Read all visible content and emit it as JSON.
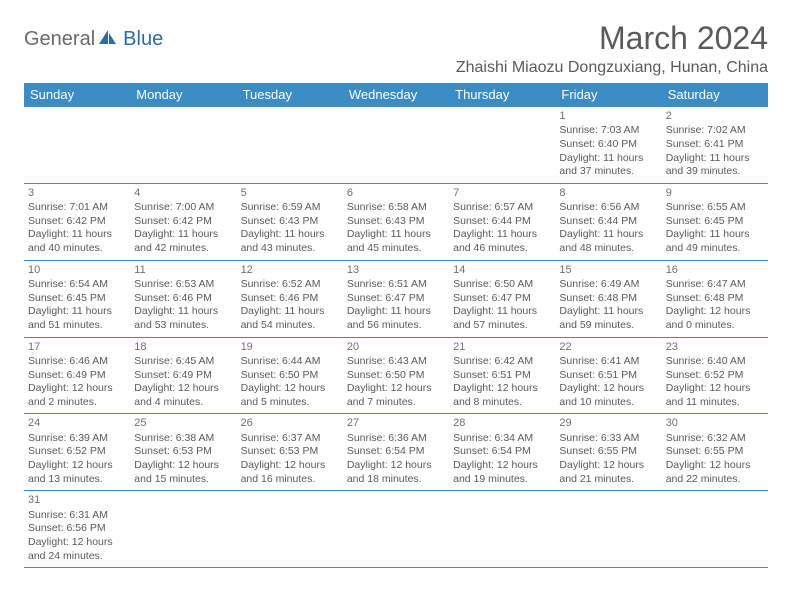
{
  "logo": {
    "part1": "General",
    "part2": "Blue"
  },
  "title": "March 2024",
  "location": "Zhaishi Miaozu Dongzuxiang, Hunan, China",
  "colors": {
    "header_bg": "#3b8bc4",
    "header_text": "#ffffff",
    "border": "#3b8bc4",
    "text": "#5a5a5a",
    "logo_blue": "#2b6ca3",
    "logo_gray": "#6a6a6a"
  },
  "weekdays": [
    "Sunday",
    "Monday",
    "Tuesday",
    "Wednesday",
    "Thursday",
    "Friday",
    "Saturday"
  ],
  "weeks": [
    [
      null,
      null,
      null,
      null,
      null,
      {
        "n": "1",
        "sr": "7:03 AM",
        "ss": "6:40 PM",
        "dl": "11 hours and 37 minutes."
      },
      {
        "n": "2",
        "sr": "7:02 AM",
        "ss": "6:41 PM",
        "dl": "11 hours and 39 minutes."
      }
    ],
    [
      {
        "n": "3",
        "sr": "7:01 AM",
        "ss": "6:42 PM",
        "dl": "11 hours and 40 minutes."
      },
      {
        "n": "4",
        "sr": "7:00 AM",
        "ss": "6:42 PM",
        "dl": "11 hours and 42 minutes."
      },
      {
        "n": "5",
        "sr": "6:59 AM",
        "ss": "6:43 PM",
        "dl": "11 hours and 43 minutes."
      },
      {
        "n": "6",
        "sr": "6:58 AM",
        "ss": "6:43 PM",
        "dl": "11 hours and 45 minutes."
      },
      {
        "n": "7",
        "sr": "6:57 AM",
        "ss": "6:44 PM",
        "dl": "11 hours and 46 minutes."
      },
      {
        "n": "8",
        "sr": "6:56 AM",
        "ss": "6:44 PM",
        "dl": "11 hours and 48 minutes."
      },
      {
        "n": "9",
        "sr": "6:55 AM",
        "ss": "6:45 PM",
        "dl": "11 hours and 49 minutes."
      }
    ],
    [
      {
        "n": "10",
        "sr": "6:54 AM",
        "ss": "6:45 PM",
        "dl": "11 hours and 51 minutes."
      },
      {
        "n": "11",
        "sr": "6:53 AM",
        "ss": "6:46 PM",
        "dl": "11 hours and 53 minutes."
      },
      {
        "n": "12",
        "sr": "6:52 AM",
        "ss": "6:46 PM",
        "dl": "11 hours and 54 minutes."
      },
      {
        "n": "13",
        "sr": "6:51 AM",
        "ss": "6:47 PM",
        "dl": "11 hours and 56 minutes."
      },
      {
        "n": "14",
        "sr": "6:50 AM",
        "ss": "6:47 PM",
        "dl": "11 hours and 57 minutes."
      },
      {
        "n": "15",
        "sr": "6:49 AM",
        "ss": "6:48 PM",
        "dl": "11 hours and 59 minutes."
      },
      {
        "n": "16",
        "sr": "6:47 AM",
        "ss": "6:48 PM",
        "dl": "12 hours and 0 minutes."
      }
    ],
    [
      {
        "n": "17",
        "sr": "6:46 AM",
        "ss": "6:49 PM",
        "dl": "12 hours and 2 minutes."
      },
      {
        "n": "18",
        "sr": "6:45 AM",
        "ss": "6:49 PM",
        "dl": "12 hours and 4 minutes."
      },
      {
        "n": "19",
        "sr": "6:44 AM",
        "ss": "6:50 PM",
        "dl": "12 hours and 5 minutes."
      },
      {
        "n": "20",
        "sr": "6:43 AM",
        "ss": "6:50 PM",
        "dl": "12 hours and 7 minutes."
      },
      {
        "n": "21",
        "sr": "6:42 AM",
        "ss": "6:51 PM",
        "dl": "12 hours and 8 minutes."
      },
      {
        "n": "22",
        "sr": "6:41 AM",
        "ss": "6:51 PM",
        "dl": "12 hours and 10 minutes."
      },
      {
        "n": "23",
        "sr": "6:40 AM",
        "ss": "6:52 PM",
        "dl": "12 hours and 11 minutes."
      }
    ],
    [
      {
        "n": "24",
        "sr": "6:39 AM",
        "ss": "6:52 PM",
        "dl": "12 hours and 13 minutes."
      },
      {
        "n": "25",
        "sr": "6:38 AM",
        "ss": "6:53 PM",
        "dl": "12 hours and 15 minutes."
      },
      {
        "n": "26",
        "sr": "6:37 AM",
        "ss": "6:53 PM",
        "dl": "12 hours and 16 minutes."
      },
      {
        "n": "27",
        "sr": "6:36 AM",
        "ss": "6:54 PM",
        "dl": "12 hours and 18 minutes."
      },
      {
        "n": "28",
        "sr": "6:34 AM",
        "ss": "6:54 PM",
        "dl": "12 hours and 19 minutes."
      },
      {
        "n": "29",
        "sr": "6:33 AM",
        "ss": "6:55 PM",
        "dl": "12 hours and 21 minutes."
      },
      {
        "n": "30",
        "sr": "6:32 AM",
        "ss": "6:55 PM",
        "dl": "12 hours and 22 minutes."
      }
    ],
    [
      {
        "n": "31",
        "sr": "6:31 AM",
        "ss": "6:56 PM",
        "dl": "12 hours and 24 minutes."
      },
      null,
      null,
      null,
      null,
      null,
      null
    ]
  ],
  "labels": {
    "sunrise": "Sunrise:",
    "sunset": "Sunset:",
    "daylight": "Daylight:"
  }
}
